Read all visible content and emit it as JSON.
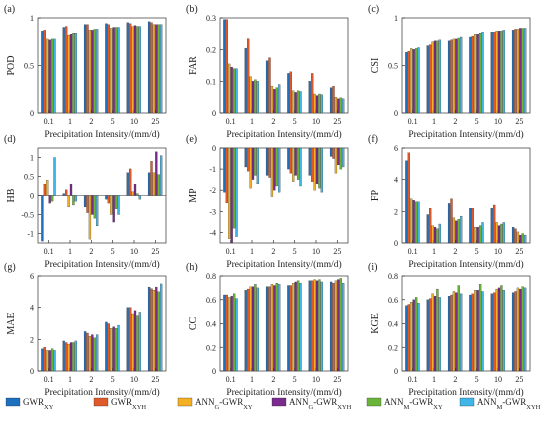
{
  "chart_data": [
    {
      "panel": "(a)",
      "type": "bar",
      "ylabel": "POD",
      "xlabel": "Precipitation Intensity/(mm/d)",
      "categories": [
        "0.1",
        "1",
        "2",
        "5",
        "10",
        "25"
      ],
      "ylim": [
        0,
        1
      ],
      "yticks": [
        0,
        0.5,
        1
      ],
      "yticklabels": [
        "0",
        "0.5",
        "1"
      ],
      "series": [
        {
          "values": [
            0.86,
            0.9,
            0.93,
            0.94,
            0.95,
            0.96
          ]
        },
        {
          "values": [
            0.87,
            0.91,
            0.93,
            0.93,
            0.94,
            0.95
          ]
        },
        {
          "values": [
            0.78,
            0.82,
            0.87,
            0.89,
            0.91,
            0.93
          ]
        },
        {
          "values": [
            0.77,
            0.83,
            0.87,
            0.9,
            0.92,
            0.93
          ]
        },
        {
          "values": [
            0.78,
            0.84,
            0.88,
            0.9,
            0.91,
            0.93
          ]
        },
        {
          "values": [
            0.78,
            0.84,
            0.88,
            0.9,
            0.91,
            0.93
          ]
        }
      ]
    },
    {
      "panel": "(b)",
      "type": "bar",
      "ylabel": "FAR",
      "xlabel": "Precipitation Intensity/(mm/d)",
      "categories": [
        "0.1",
        "1",
        "2",
        "5",
        "10",
        "25"
      ],
      "ylim": [
        0,
        0.3
      ],
      "yticks": [
        0,
        0.1,
        0.2,
        0.3
      ],
      "yticklabels": [
        "0",
        "0.1",
        "0.2",
        "0.3"
      ],
      "series": [
        {
          "values": [
            0.295,
            0.205,
            0.165,
            0.125,
            0.1,
            0.08
          ]
        },
        {
          "values": [
            0.295,
            0.235,
            0.175,
            0.13,
            0.125,
            0.085
          ]
        },
        {
          "values": [
            0.155,
            0.115,
            0.085,
            0.07,
            0.06,
            0.05
          ]
        },
        {
          "values": [
            0.145,
            0.1,
            0.075,
            0.065,
            0.055,
            0.045
          ]
        },
        {
          "values": [
            0.14,
            0.105,
            0.08,
            0.07,
            0.06,
            0.048
          ]
        },
        {
          "values": [
            0.14,
            0.1,
            0.09,
            0.068,
            0.058,
            0.045
          ]
        }
      ]
    },
    {
      "panel": "(c)",
      "type": "bar",
      "ylabel": "CSI",
      "xlabel": "Precipitation Intensity/(mm/d)",
      "categories": [
        "0.1",
        "1",
        "2",
        "5",
        "10",
        "25"
      ],
      "ylim": [
        0,
        1
      ],
      "yticks": [
        0,
        0.5,
        1
      ],
      "yticklabels": [
        "0",
        "0.5",
        "1"
      ],
      "series": [
        {
          "values": [
            0.64,
            0.71,
            0.76,
            0.8,
            0.85,
            0.87
          ]
        },
        {
          "values": [
            0.65,
            0.72,
            0.77,
            0.81,
            0.85,
            0.88
          ]
        },
        {
          "values": [
            0.68,
            0.75,
            0.78,
            0.83,
            0.86,
            0.88
          ]
        },
        {
          "values": [
            0.67,
            0.76,
            0.78,
            0.83,
            0.86,
            0.89
          ]
        },
        {
          "values": [
            0.68,
            0.76,
            0.79,
            0.84,
            0.86,
            0.89
          ]
        },
        {
          "values": [
            0.69,
            0.77,
            0.8,
            0.85,
            0.87,
            0.89
          ]
        }
      ]
    },
    {
      "panel": "(d)",
      "type": "bar",
      "ylabel": "HB",
      "xlabel": "Precipitation Intensity/(mm/d)",
      "categories": [
        "0.1",
        "1",
        "2",
        "5",
        "10",
        "25"
      ],
      "ylim": [
        -1.25,
        1.25
      ],
      "yticks": [
        -1,
        -0.5,
        0,
        0.5,
        1
      ],
      "yticklabels": [
        "-1",
        "-0.5",
        "0",
        "0.5",
        "1"
      ],
      "series": [
        {
          "values": [
            -1.2,
            0.05,
            -0.3,
            -0.1,
            0.6,
            0.6
          ]
        },
        {
          "values": [
            0.3,
            0.15,
            -0.45,
            -0.2,
            0.7,
            0.9
          ]
        },
        {
          "values": [
            0.4,
            -0.3,
            -1.15,
            -0.5,
            0.1,
            0.6
          ]
        },
        {
          "values": [
            -0.2,
            0.3,
            -0.5,
            -0.7,
            0.3,
            1.15
          ]
        },
        {
          "values": [
            -0.15,
            -0.25,
            -0.6,
            -0.35,
            0.05,
            0.55
          ]
        },
        {
          "values": [
            1.0,
            -0.15,
            -0.8,
            -0.5,
            -0.1,
            1.05
          ]
        }
      ]
    },
    {
      "panel": "(e)",
      "type": "bar",
      "ylabel": "MP",
      "xlabel": "Precipitation Intensity/(mm/d)",
      "categories": [
        "0.1",
        "1",
        "2",
        "5",
        "10",
        "25"
      ],
      "ylim": [
        -4.5,
        0
      ],
      "yticks": [
        -4,
        -3,
        -2,
        -1,
        0
      ],
      "yticklabels": [
        "-4",
        "-3",
        "-2",
        "-1",
        "0"
      ],
      "series": [
        {
          "values": [
            -2.1,
            -0.9,
            -1.3,
            -1.0,
            -1.3,
            -0.4
          ]
        },
        {
          "values": [
            -2.6,
            -1.1,
            -1.4,
            -1.2,
            -1.6,
            -0.5
          ]
        },
        {
          "values": [
            -4.3,
            -1.9,
            -2.3,
            -1.6,
            -2.0,
            -1.2
          ]
        },
        {
          "values": [
            -4.5,
            -1.5,
            -2.0,
            -1.3,
            -1.7,
            -0.8
          ]
        },
        {
          "values": [
            -3.8,
            -1.3,
            -1.8,
            -1.5,
            -1.9,
            -1.0
          ]
        },
        {
          "values": [
            -4.2,
            -1.7,
            -2.1,
            -1.8,
            -2.1,
            -0.9
          ]
        }
      ]
    },
    {
      "panel": "(f)",
      "type": "bar",
      "ylabel": "FP",
      "xlabel": "Precipitation Intensity/(mm/d)",
      "categories": [
        "0.1",
        "1",
        "2",
        "5",
        "10",
        "25"
      ],
      "ylim": [
        0,
        6
      ],
      "yticks": [
        0,
        2,
        4,
        6
      ],
      "yticklabels": [
        "0",
        "2",
        "4",
        "6"
      ],
      "series": [
        {
          "values": [
            5.2,
            1.8,
            2.5,
            2.2,
            2.2,
            1.0
          ]
        },
        {
          "values": [
            5.7,
            2.2,
            2.8,
            2.2,
            2.4,
            0.9
          ]
        },
        {
          "values": [
            2.8,
            1.1,
            1.6,
            1.0,
            1.3,
            0.7
          ]
        },
        {
          "values": [
            2.7,
            1.0,
            1.4,
            1.0,
            1.1,
            0.5
          ]
        },
        {
          "values": [
            2.6,
            0.9,
            1.5,
            1.1,
            1.2,
            0.6
          ]
        },
        {
          "values": [
            2.6,
            1.2,
            1.7,
            1.3,
            1.3,
            0.5
          ]
        }
      ]
    },
    {
      "panel": "(g)",
      "type": "bar",
      "ylabel": "MAE",
      "xlabel": "Precipitation Intensity/(mm/d)",
      "categories": [
        "0.1",
        "1",
        "2",
        "5",
        "10",
        "25"
      ],
      "ylim": [
        0,
        6
      ],
      "yticks": [
        0,
        2,
        4,
        6
      ],
      "yticklabels": [
        "0",
        "2",
        "4",
        "6"
      ],
      "series": [
        {
          "values": [
            1.4,
            1.9,
            2.5,
            3.1,
            4.0,
            5.3
          ]
        },
        {
          "values": [
            1.5,
            1.8,
            2.4,
            3.0,
            4.0,
            5.2
          ]
        },
        {
          "values": [
            1.3,
            1.7,
            2.2,
            2.7,
            3.6,
            5.1
          ]
        },
        {
          "values": [
            1.3,
            1.8,
            2.3,
            2.8,
            3.8,
            5.3
          ]
        },
        {
          "values": [
            1.4,
            1.8,
            2.1,
            2.7,
            3.5,
            5.0
          ]
        },
        {
          "values": [
            1.3,
            1.9,
            2.3,
            2.9,
            3.7,
            5.5
          ]
        }
      ]
    },
    {
      "panel": "(h)",
      "type": "bar",
      "ylabel": "CC",
      "xlabel": "Precipitation Intensity/(mm/d)",
      "categories": [
        "0.1",
        "1",
        "2",
        "5",
        "10",
        "25"
      ],
      "ylim": [
        0,
        0.8
      ],
      "yticks": [
        0,
        0.2,
        0.4,
        0.6,
        0.8
      ],
      "yticklabels": [
        "0",
        "0.2",
        "0.4",
        "0.6",
        "0.8"
      ],
      "series": [
        {
          "values": [
            0.64,
            0.68,
            0.71,
            0.72,
            0.76,
            0.75
          ]
        },
        {
          "values": [
            0.64,
            0.69,
            0.71,
            0.72,
            0.76,
            0.74
          ]
        },
        {
          "values": [
            0.62,
            0.71,
            0.73,
            0.74,
            0.77,
            0.76
          ]
        },
        {
          "values": [
            0.63,
            0.71,
            0.72,
            0.75,
            0.76,
            0.77
          ]
        },
        {
          "values": [
            0.65,
            0.73,
            0.74,
            0.76,
            0.77,
            0.78
          ]
        },
        {
          "values": [
            0.61,
            0.7,
            0.73,
            0.74,
            0.75,
            0.74
          ]
        }
      ]
    },
    {
      "panel": "(i)",
      "type": "bar",
      "ylabel": "KGE",
      "xlabel": "Precipitation Intensity/(mm/d)",
      "categories": [
        "0.1",
        "1",
        "2",
        "5",
        "10",
        "25"
      ],
      "ylim": [
        0,
        0.8
      ],
      "yticks": [
        0,
        0.2,
        0.4,
        0.6,
        0.8
      ],
      "yticklabels": [
        "0",
        "0.2",
        "0.4",
        "0.6",
        "0.8"
      ],
      "series": [
        {
          "values": [
            0.55,
            0.6,
            0.63,
            0.64,
            0.65,
            0.66
          ]
        },
        {
          "values": [
            0.56,
            0.61,
            0.64,
            0.65,
            0.66,
            0.67
          ]
        },
        {
          "values": [
            0.58,
            0.65,
            0.67,
            0.68,
            0.69,
            0.7
          ]
        },
        {
          "values": [
            0.6,
            0.63,
            0.66,
            0.68,
            0.7,
            0.69
          ]
        },
        {
          "values": [
            0.62,
            0.69,
            0.72,
            0.73,
            0.72,
            0.71
          ]
        },
        {
          "values": [
            0.57,
            0.62,
            0.65,
            0.67,
            0.68,
            0.7
          ]
        }
      ]
    }
  ],
  "legend": {
    "items": [
      {
        "main": "GWR",
        "sub": "XY",
        "color": "#1f6fbf"
      },
      {
        "main": "GWR",
        "sub": "XYH",
        "color": "#e0592a"
      },
      {
        "main": "ANN",
        "sub": "G",
        "tail": "-GWR",
        "tail_sub": "XY",
        "color": "#f4b024"
      },
      {
        "main": "ANN",
        "sub": "G",
        "tail": "-GWR",
        "tail_sub": "XYH",
        "color": "#7b2a8e"
      },
      {
        "main": "ANN",
        "sub": "M",
        "tail": "-GWR",
        "tail_sub": "XY",
        "color": "#6bb43a"
      },
      {
        "main": "ANN",
        "sub": "M",
        "tail": "-GWR",
        "tail_sub": "XYH",
        "color": "#3fb6e8"
      }
    ]
  }
}
